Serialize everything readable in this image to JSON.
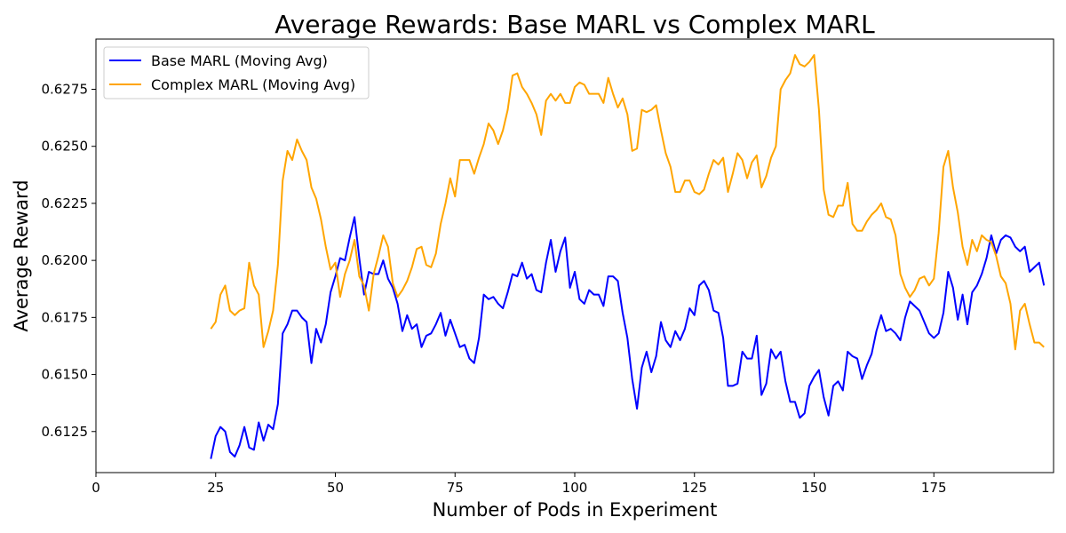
{
  "chart_data": {
    "type": "line",
    "title": "Average Rewards: Base MARL vs Complex MARL",
    "xlabel": "Number of Pods in Experiment",
    "ylabel": "Average Reward",
    "xlim": [
      0,
      200
    ],
    "ylim": [
      0.6107,
      0.6297
    ],
    "x_ticks": [
      0,
      25,
      50,
      75,
      100,
      125,
      150,
      175
    ],
    "y_ticks": [
      0.6125,
      0.615,
      0.6175,
      0.62,
      0.6225,
      0.625,
      0.6275
    ],
    "x_tick_labels": [
      "0",
      "25",
      "50",
      "75",
      "100",
      "125",
      "150",
      "175"
    ],
    "y_tick_labels": [
      "0.6125",
      "0.6150",
      "0.6175",
      "0.6200",
      "0.6225",
      "0.6250",
      "0.6275"
    ],
    "grid": false,
    "legend_position": "top-left",
    "series": [
      {
        "name": "Base MARL (Moving Avg)",
        "color": "#0000ff",
        "x_start": 24,
        "x_step": 1,
        "values": [
          0.6113,
          0.6123,
          0.6127,
          0.6125,
          0.6116,
          0.6114,
          0.6119,
          0.6127,
          0.6118,
          0.6117,
          0.6129,
          0.6121,
          0.6128,
          0.6126,
          0.6137,
          0.6168,
          0.6172,
          0.6178,
          0.6178,
          0.6175,
          0.6173,
          0.6155,
          0.617,
          0.6164,
          0.6172,
          0.6186,
          0.6193,
          0.6201,
          0.62,
          0.621,
          0.6219,
          0.6201,
          0.6185,
          0.6195,
          0.6194,
          0.6194,
          0.62,
          0.6192,
          0.6188,
          0.6181,
          0.6169,
          0.6176,
          0.617,
          0.6172,
          0.6162,
          0.6167,
          0.6168,
          0.6172,
          0.6177,
          0.6167,
          0.6174,
          0.6168,
          0.6162,
          0.6163,
          0.6157,
          0.6155,
          0.6166,
          0.6185,
          0.6183,
          0.6184,
          0.6181,
          0.6179,
          0.6186,
          0.6194,
          0.6193,
          0.6199,
          0.6192,
          0.6194,
          0.6187,
          0.6186,
          0.6199,
          0.6209,
          0.6195,
          0.6204,
          0.621,
          0.6188,
          0.6195,
          0.6183,
          0.6181,
          0.6187,
          0.6185,
          0.6185,
          0.618,
          0.6193,
          0.6193,
          0.6191,
          0.6177,
          0.6166,
          0.6148,
          0.6135,
          0.6153,
          0.616,
          0.6151,
          0.6158,
          0.6173,
          0.6165,
          0.6162,
          0.6169,
          0.6165,
          0.617,
          0.6179,
          0.6176,
          0.6189,
          0.6191,
          0.6187,
          0.6178,
          0.6177,
          0.6166,
          0.6145,
          0.6145,
          0.6146,
          0.616,
          0.6157,
          0.6157,
          0.6167,
          0.6141,
          0.6146,
          0.6161,
          0.6157,
          0.616,
          0.6147,
          0.6138,
          0.6138,
          0.6131,
          0.6133,
          0.6145,
          0.6149,
          0.6152,
          0.614,
          0.6132,
          0.6145,
          0.6147,
          0.6143,
          0.616,
          0.6158,
          0.6157,
          0.6148,
          0.6154,
          0.6159,
          0.6169,
          0.6176,
          0.6169,
          0.617,
          0.6168,
          0.6165,
          0.6175,
          0.6182,
          0.618,
          0.6178,
          0.6173,
          0.6168,
          0.6166,
          0.6168,
          0.6177,
          0.6195,
          0.6188,
          0.6174,
          0.6185,
          0.6172,
          0.6186,
          0.6189,
          0.6194,
          0.6201,
          0.6211,
          0.6203,
          0.6209,
          0.6211,
          0.621,
          0.6206,
          0.6204,
          0.6206,
          0.6195,
          0.6197,
          0.6199,
          0.6189
        ]
      },
      {
        "name": "Complex MARL (Moving Avg)",
        "color": "#ffa500",
        "x_start": 24,
        "x_step": 1,
        "values": [
          0.617,
          0.6173,
          0.6185,
          0.6189,
          0.6178,
          0.6176,
          0.6178,
          0.6179,
          0.6199,
          0.6189,
          0.6185,
          0.6162,
          0.6169,
          0.6178,
          0.6198,
          0.6235,
          0.6248,
          0.6244,
          0.6253,
          0.6248,
          0.6244,
          0.6232,
          0.6227,
          0.6218,
          0.6206,
          0.6196,
          0.6199,
          0.6184,
          0.6194,
          0.62,
          0.6209,
          0.6193,
          0.6189,
          0.6178,
          0.6194,
          0.6202,
          0.6211,
          0.6206,
          0.619,
          0.6184,
          0.6187,
          0.6191,
          0.6197,
          0.6205,
          0.6206,
          0.6198,
          0.6197,
          0.6203,
          0.6216,
          0.6225,
          0.6236,
          0.6228,
          0.6244,
          0.6244,
          0.6244,
          0.6238,
          0.6245,
          0.6251,
          0.626,
          0.6257,
          0.6251,
          0.6257,
          0.6266,
          0.6281,
          0.6282,
          0.6276,
          0.6273,
          0.6269,
          0.6264,
          0.6255,
          0.627,
          0.6273,
          0.627,
          0.6273,
          0.6269,
          0.6269,
          0.6276,
          0.6278,
          0.6277,
          0.6273,
          0.6273,
          0.6273,
          0.6269,
          0.628,
          0.6273,
          0.6267,
          0.6271,
          0.6264,
          0.6248,
          0.6249,
          0.6266,
          0.6265,
          0.6266,
          0.6268,
          0.6257,
          0.6247,
          0.6241,
          0.623,
          0.623,
          0.6235,
          0.6235,
          0.623,
          0.6229,
          0.6231,
          0.6238,
          0.6244,
          0.6242,
          0.6245,
          0.623,
          0.6238,
          0.6247,
          0.6244,
          0.6236,
          0.6243,
          0.6246,
          0.6232,
          0.6237,
          0.6245,
          0.625,
          0.6275,
          0.6279,
          0.6282,
          0.629,
          0.6286,
          0.6285,
          0.6287,
          0.629,
          0.6266,
          0.6231,
          0.622,
          0.6219,
          0.6224,
          0.6224,
          0.6234,
          0.6216,
          0.6213,
          0.6213,
          0.6217,
          0.622,
          0.6222,
          0.6225,
          0.6219,
          0.6218,
          0.6211,
          0.6194,
          0.6188,
          0.6184,
          0.6187,
          0.6192,
          0.6193,
          0.6189,
          0.6192,
          0.6212,
          0.6241,
          0.6248,
          0.6232,
          0.6221,
          0.6206,
          0.6198,
          0.6209,
          0.6204,
          0.6211,
          0.6209,
          0.6208,
          0.6202,
          0.6193,
          0.619,
          0.6181,
          0.6161,
          0.6178,
          0.6181,
          0.6172,
          0.6164,
          0.6164,
          0.6162
        ]
      }
    ]
  }
}
